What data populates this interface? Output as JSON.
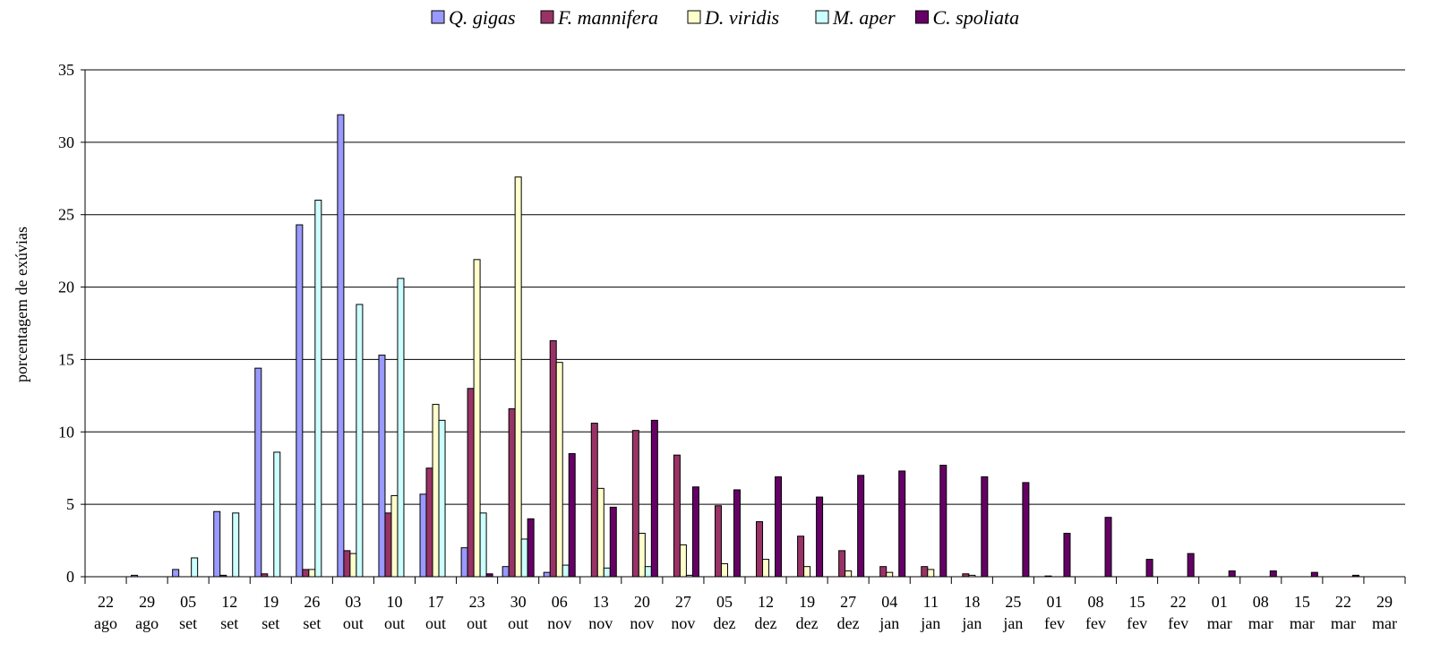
{
  "chart_data": {
    "type": "bar",
    "y_label": "porcentagem de exúvias",
    "categories": [
      "22 ago",
      "29 ago",
      "05 set",
      "12 set",
      "19 set",
      "26 set",
      "03 out",
      "10 out",
      "17 out",
      "23 out",
      "30 out",
      "06 nov",
      "13 nov",
      "20 nov",
      "27 nov",
      "05 dez",
      "12 dez",
      "19 dez",
      "27 dez",
      "04 jan",
      "11 jan",
      "18 jan",
      "25 jan",
      "01 fev",
      "08 fev",
      "15 fev",
      "22 fev",
      "01 mar",
      "08 mar",
      "15 mar",
      "22 mar",
      "29 mar"
    ],
    "series": [
      {
        "name": "Q. gigas",
        "color": "#9999ff",
        "values": [
          0,
          0.1,
          0.5,
          4.5,
          14.4,
          24.3,
          31.9,
          15.3,
          5.7,
          2.0,
          0.7,
          0.3,
          0,
          0,
          0,
          0,
          0,
          0,
          0,
          0,
          0,
          0,
          0,
          0,
          0,
          0,
          0,
          0,
          0,
          0,
          0,
          0
        ]
      },
      {
        "name": "F. mannifera",
        "color": "#993366",
        "values": [
          0,
          0,
          0,
          0.1,
          0.2,
          0.5,
          1.8,
          4.4,
          7.5,
          13.0,
          11.6,
          16.3,
          10.6,
          10.1,
          8.4,
          4.9,
          3.8,
          2.8,
          1.8,
          0.7,
          0.7,
          0.2,
          0,
          0.05,
          0,
          0,
          0,
          0,
          0,
          0,
          0,
          0
        ]
      },
      {
        "name": "D. viridis",
        "color": "#ffffcc",
        "values": [
          0,
          0,
          0,
          0,
          0,
          0.5,
          1.6,
          5.6,
          11.9,
          21.9,
          27.6,
          14.8,
          6.1,
          3.0,
          2.2,
          0.9,
          1.2,
          0.7,
          0.4,
          0.3,
          0.5,
          0.1,
          0,
          0,
          0,
          0,
          0,
          0,
          0,
          0,
          0,
          0
        ]
      },
      {
        "name": "M. aper",
        "color": "#ccffff",
        "values": [
          0,
          0,
          1.3,
          4.4,
          8.6,
          26.0,
          18.8,
          20.6,
          10.8,
          4.4,
          2.6,
          0.8,
          0.6,
          0.7,
          0.1,
          0,
          0,
          0,
          0,
          0,
          0,
          0,
          0,
          0,
          0,
          0,
          0,
          0,
          0,
          0,
          0,
          0
        ]
      },
      {
        "name": "C. spoliata",
        "color": "#660066",
        "values": [
          0,
          0,
          0,
          0,
          0,
          0,
          0,
          0,
          0,
          0.2,
          4.0,
          8.5,
          4.8,
          10.8,
          6.2,
          6.0,
          6.9,
          5.5,
          7.0,
          7.3,
          7.7,
          6.9,
          6.5,
          3.0,
          4.1,
          1.2,
          1.6,
          0.4,
          0.4,
          0.3,
          0.1,
          0
        ]
      }
    ],
    "ylim": [
      0,
      35
    ],
    "yticks": [
      0,
      5,
      10,
      15,
      20,
      25,
      30,
      35
    ],
    "grid": true
  }
}
